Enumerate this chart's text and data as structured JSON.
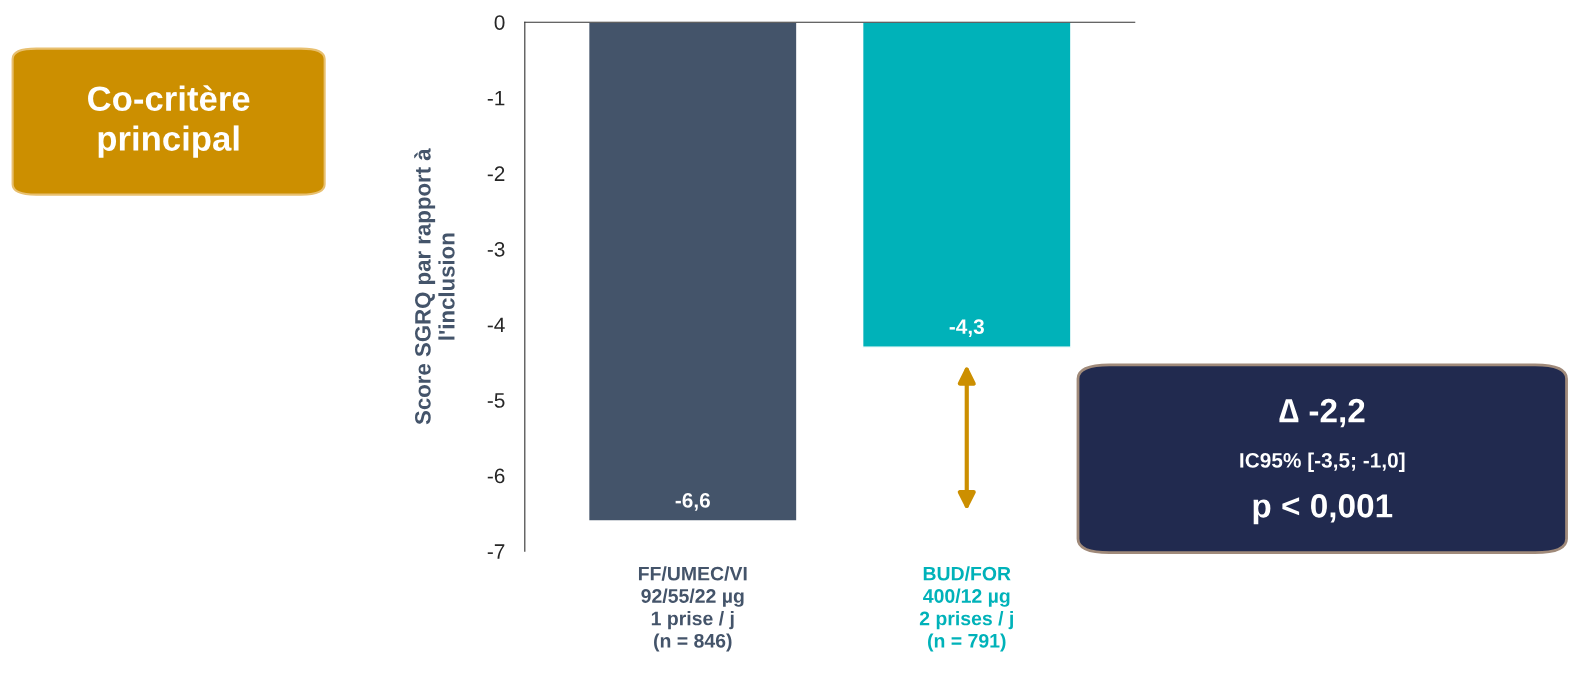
{
  "chart_data": {
    "type": "bar",
    "ylabel": "Score SGRQ par rapport à\nl'inclusion",
    "categories": [
      "FF/UMEC/VI\n92/55/22 µg\n1 prise / j\n(n = 846)",
      "BUD/FOR\n400/12 µg\n2 prises / j\n(n = 791)"
    ],
    "values": [
      -6.6,
      -4.3
    ],
    "colors": [
      "#44546a",
      "#00b2b9"
    ],
    "value_labels": [
      "-6,6",
      "-4,3"
    ],
    "ylim": [
      -7,
      0
    ],
    "yticks": [
      0,
      -1,
      -2,
      -3,
      -4,
      -5,
      -6,
      -7
    ],
    "grid": false,
    "legend": false,
    "annotations": [
      "Co-critère\nprincipal",
      "∆ -2,2",
      "IC95% [-3,5; -1,0]",
      "p < 0,001"
    ]
  }
}
